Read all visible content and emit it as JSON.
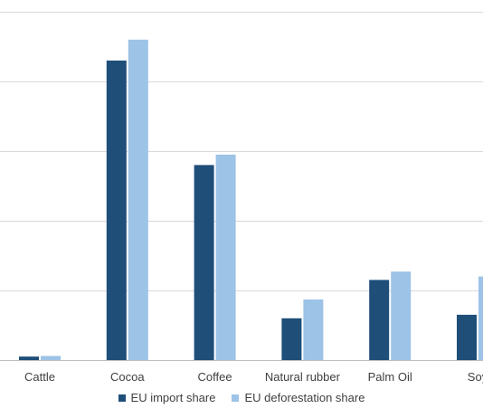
{
  "chart_data": {
    "type": "bar",
    "title": "",
    "xlabel": "",
    "ylabel": "",
    "categories": [
      "Cattle",
      "Cocoa",
      "Coffee",
      "Natural rubber",
      "Palm Oil",
      "Soy"
    ],
    "series": [
      {
        "name": "EU import share",
        "color": "#1f4e79",
        "values": [
          0.5,
          43,
          28,
          6,
          11.5,
          6.5
        ]
      },
      {
        "name": "EU deforestation share",
        "color": "#9dc3e6",
        "values": [
          0.6,
          46,
          29.5,
          8.7,
          12.7,
          12
        ]
      }
    ],
    "ylim": [
      0,
      50
    ],
    "y_gridlines": [
      0,
      10,
      20,
      30,
      40,
      50
    ],
    "grid": true,
    "legend_position": "bottom"
  }
}
